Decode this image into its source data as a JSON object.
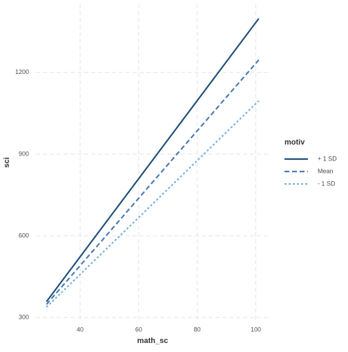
{
  "chart_data": {
    "type": "line",
    "x_label": "math_sc",
    "y_label": "sci",
    "x": [
      28.5,
      101
    ],
    "series": [
      {
        "name": "+ 1 SD",
        "color": "#1f4e79",
        "dash": "solid",
        "values": [
          358,
          1398
        ]
      },
      {
        "name": "Mean",
        "color": "#4a7ab5",
        "dash": "dashed",
        "values": [
          348,
          1246
        ]
      },
      {
        "name": "- 1 SD",
        "color": "#78b0e0",
        "dash": "dotted",
        "values": [
          338,
          1096
        ]
      }
    ],
    "xlim": [
      24.9,
      104.6
    ],
    "xticks": [
      40,
      60,
      80,
      100
    ],
    "ylim": [
      285,
      1451
    ],
    "yticks": [
      300,
      600,
      900,
      1200
    ],
    "grid": true,
    "legend_title": "motiv",
    "legend_position": "right"
  }
}
